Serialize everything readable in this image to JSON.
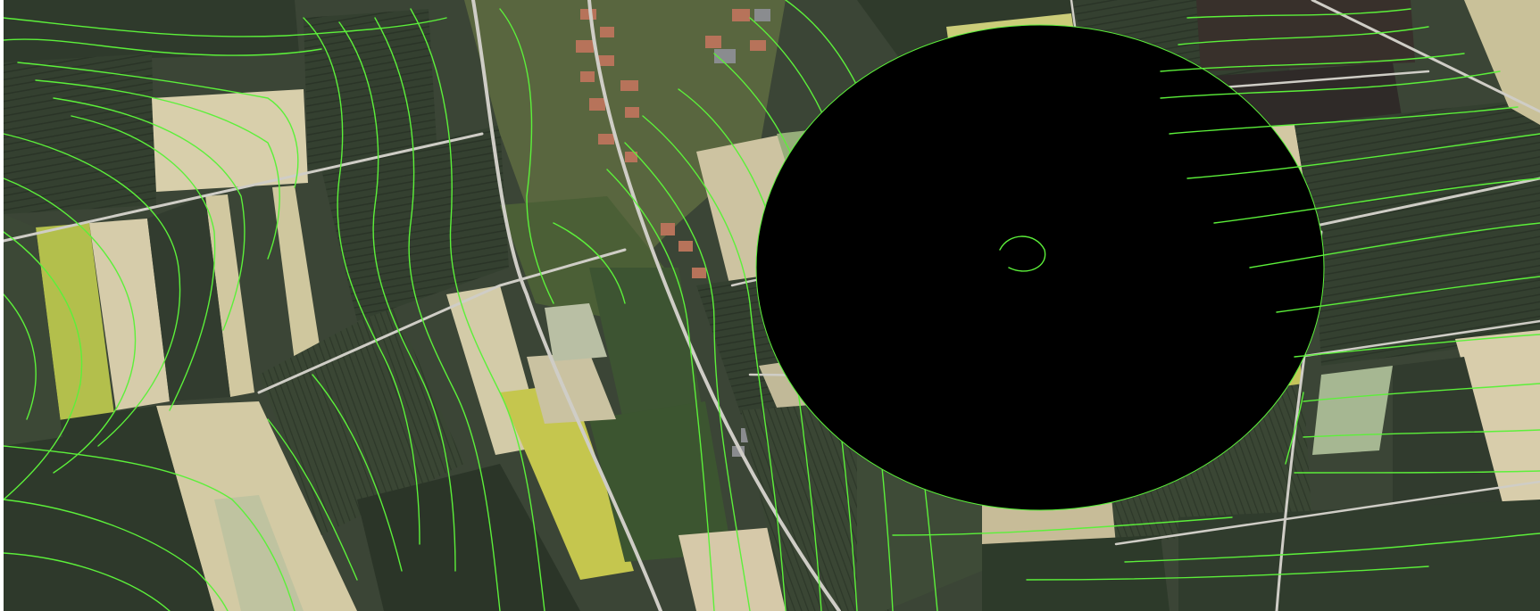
{
  "map": {
    "kind": "aerial orthophoto with contour lines",
    "colors": {
      "contour": "#5cf03a",
      "field_dark": "#3b4536",
      "field_darker": "#2c3529",
      "field_green": "#4d6a3c",
      "field_light": "#d7cfa8",
      "field_beige": "#c9c19a",
      "field_yellow": "#b9c24a",
      "forest": "#25331f",
      "road": "#c9c8c2",
      "roof": "#b7735a",
      "white_border": "#ffffff"
    },
    "icons": []
  }
}
